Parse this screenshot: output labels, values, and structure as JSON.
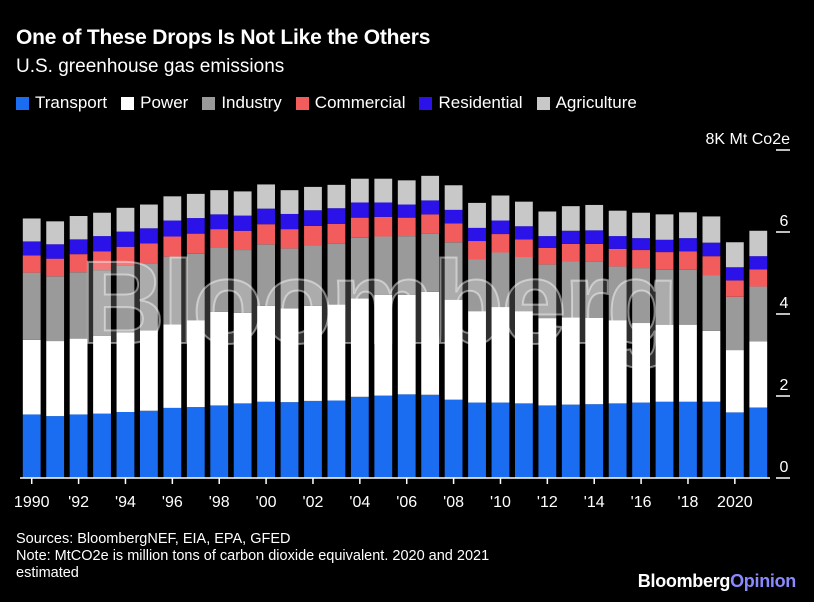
{
  "title": "One of These Drops Is Not Like the Others",
  "subtitle": "U.S. greenhouse gas emissions",
  "legend": [
    {
      "name": "Transport",
      "color": "#1a6cf0"
    },
    {
      "name": "Power",
      "color": "#ffffff"
    },
    {
      "name": "Industry",
      "color": "#9a9a9a"
    },
    {
      "name": "Commercial",
      "color": "#f25c5c"
    },
    {
      "name": "Residential",
      "color": "#2a12e8"
    },
    {
      "name": "Agriculture",
      "color": "#c8c8c8"
    }
  ],
  "chart_data": {
    "type": "bar",
    "stacked": true,
    "ylabel": "8K Mt Co2e",
    "ylim": [
      0,
      8000
    ],
    "yticks": [
      0,
      2000,
      4000,
      6000,
      8000
    ],
    "ytick_labels": [
      "0",
      "2",
      "4",
      "6",
      "8K Mt Co2e"
    ],
    "categories": [
      "1990",
      "1991",
      "1992",
      "1993",
      "1994",
      "1995",
      "1996",
      "1997",
      "1998",
      "1999",
      "2000",
      "2001",
      "2002",
      "2003",
      "2004",
      "2005",
      "2006",
      "2007",
      "2008",
      "2009",
      "2010",
      "2011",
      "2012",
      "2013",
      "2014",
      "2015",
      "2016",
      "2017",
      "2018",
      "2019",
      "2020",
      "2021"
    ],
    "xtick_labels": [
      "1990",
      "'92",
      "'94",
      "'96",
      "'98",
      "'00",
      "'02",
      "'04",
      "'06",
      "'08",
      "'10",
      "'12",
      "'14",
      "'16",
      "'18",
      "2020"
    ],
    "xtick_years": [
      "1990",
      "1992",
      "1994",
      "1996",
      "1998",
      "2000",
      "2002",
      "2004",
      "2006",
      "2008",
      "2010",
      "2012",
      "2014",
      "2016",
      "2018",
      "2020"
    ],
    "series": [
      {
        "name": "Transport",
        "values": [
          1550,
          1510,
          1550,
          1570,
          1610,
          1640,
          1710,
          1730,
          1770,
          1820,
          1860,
          1850,
          1880,
          1890,
          1980,
          2010,
          2040,
          2030,
          1910,
          1840,
          1840,
          1820,
          1770,
          1790,
          1800,
          1820,
          1840,
          1860,
          1860,
          1860,
          1600,
          1720
        ]
      },
      {
        "name": "Power",
        "values": [
          1820,
          1830,
          1850,
          1900,
          1940,
          1960,
          2040,
          2120,
          2280,
          2210,
          2340,
          2290,
          2320,
          2340,
          2400,
          2460,
          2430,
          2510,
          2440,
          2230,
          2330,
          2250,
          2130,
          2130,
          2110,
          2030,
          1940,
          1880,
          1880,
          1730,
          1520,
          1610
        ]
      },
      {
        "name": "Industry",
        "values": [
          1640,
          1580,
          1620,
          1600,
          1630,
          1640,
          1650,
          1620,
          1560,
          1530,
          1500,
          1460,
          1470,
          1480,
          1480,
          1420,
          1430,
          1420,
          1400,
          1270,
          1330,
          1320,
          1310,
          1360,
          1360,
          1310,
          1340,
          1340,
          1340,
          1360,
          1300,
          1340
        ]
      },
      {
        "name": "Commercial",
        "values": [
          420,
          430,
          440,
          460,
          460,
          480,
          490,
          490,
          460,
          470,
          490,
          470,
          480,
          490,
          490,
          480,
          450,
          470,
          460,
          440,
          450,
          430,
          400,
          430,
          440,
          430,
          440,
          430,
          450,
          460,
          400,
          420
        ]
      },
      {
        "name": "Residential",
        "values": [
          340,
          350,
          360,
          370,
          370,
          370,
          390,
          380,
          360,
          370,
          380,
          370,
          380,
          380,
          370,
          350,
          320,
          340,
          330,
          320,
          330,
          320,
          290,
          320,
          330,
          310,
          290,
          300,
          320,
          330,
          320,
          320
        ]
      },
      {
        "name": "Agriculture",
        "values": [
          560,
          560,
          570,
          570,
          580,
          580,
          590,
          590,
          590,
          590,
          590,
          580,
          570,
          570,
          580,
          580,
          590,
          600,
          600,
          610,
          610,
          600,
          600,
          600,
          620,
          620,
          620,
          620,
          630,
          640,
          610,
          620
        ]
      }
    ]
  },
  "watermark": "Bloomberg",
  "footer": {
    "sources": "Sources: BloombergNEF, EIA, EPA, GFED",
    "note": "Note: MtCO2e is million tons of carbon dioxide equivalent. 2020 and 2021",
    "note2": "estimated"
  },
  "brand": {
    "part1": "Bloomberg",
    "part2": "Opinion"
  }
}
